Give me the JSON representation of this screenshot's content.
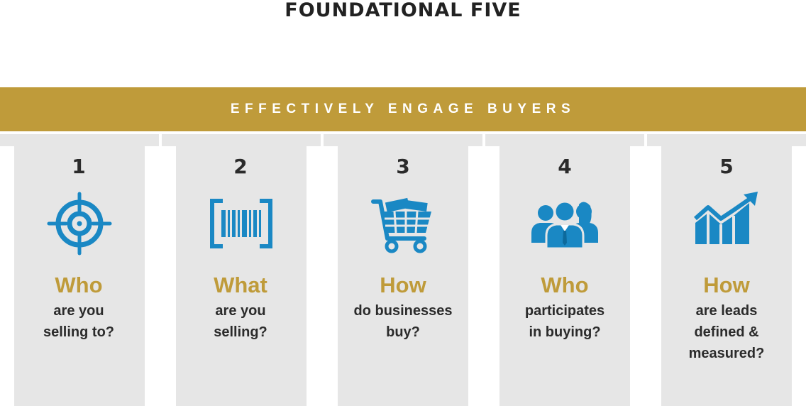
{
  "title": "FOUNDATIONAL FIVE",
  "banner": "EFFECTIVELY ENGAGE BUYERS",
  "colors": {
    "gold": "#bf9b3a",
    "blue": "#1a88c4",
    "panel": "#e6e6e6",
    "text": "#2b2b2b"
  },
  "steps": [
    {
      "number": "1",
      "icon": "target-icon",
      "heading": "Who",
      "lines": [
        "are you",
        "selling to?"
      ]
    },
    {
      "number": "2",
      "icon": "barcode-icon",
      "heading": "What",
      "lines": [
        "are you",
        "selling?"
      ]
    },
    {
      "number": "3",
      "icon": "shopping-cart-icon",
      "heading": "How",
      "lines": [
        "do businesses",
        "buy?"
      ]
    },
    {
      "number": "4",
      "icon": "people-group-icon",
      "heading": "Who",
      "lines": [
        "participates",
        "in buying?"
      ]
    },
    {
      "number": "5",
      "icon": "growth-chart-icon",
      "heading": "How",
      "lines": [
        "are leads",
        "defined &",
        "measured?"
      ]
    }
  ]
}
